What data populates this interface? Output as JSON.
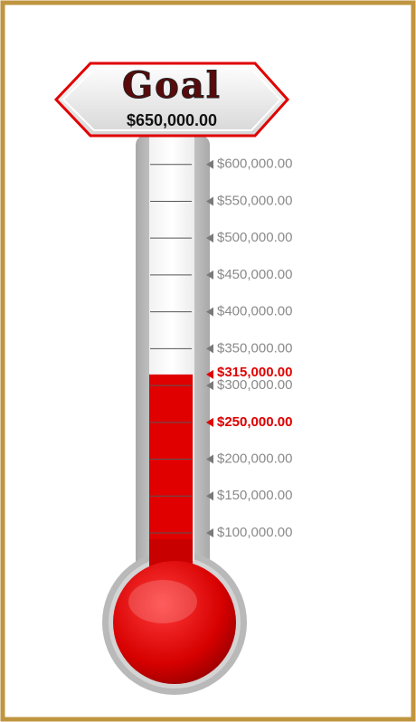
{
  "chart_data": {
    "type": "thermometer",
    "goal": {
      "label": "Goal",
      "value": 650000,
      "value_label": "$650,000.00"
    },
    "value": 315000,
    "value_label": "$315,000.00",
    "color": "#e00000",
    "milestones": [
      {
        "value": 250000,
        "label": "$250,000.00"
      }
    ],
    "ylim": [
      100000,
      650000
    ],
    "yticks": [
      {
        "value": 100000,
        "label": "$100,000.00"
      },
      {
        "value": 150000,
        "label": "$150,000.00"
      },
      {
        "value": 200000,
        "label": "$200,000.00"
      },
      {
        "value": 250000,
        "label": "$250,000.00"
      },
      {
        "value": 300000,
        "label": "$300,000.00"
      },
      {
        "value": 350000,
        "label": "$350,000.00"
      },
      {
        "value": 400000,
        "label": "$400,000.00"
      },
      {
        "value": 450000,
        "label": "$450,000.00"
      },
      {
        "value": 500000,
        "label": "$500,000.00"
      },
      {
        "value": 550000,
        "label": "$550,000.00"
      },
      {
        "value": 600000,
        "label": "$600,000.00"
      }
    ]
  }
}
